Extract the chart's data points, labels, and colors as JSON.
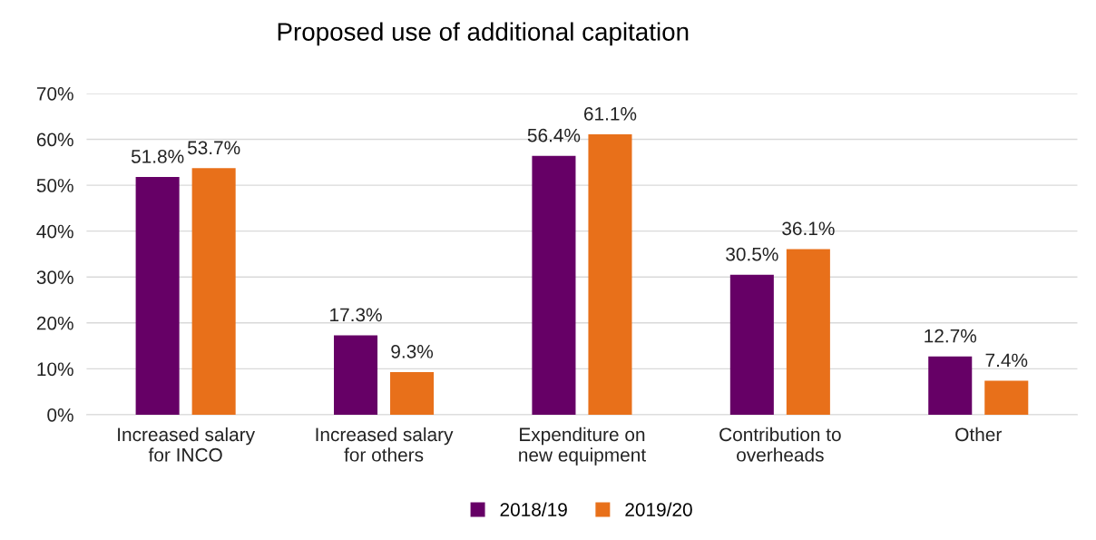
{
  "chart_data": {
    "type": "bar",
    "title": "Proposed use of additional capitation",
    "categories": [
      "Increased salary\nfor INCO",
      "Increased salary\nfor others",
      "Expenditure on\nnew equipment",
      "Contribution to\noverheads",
      "Other"
    ],
    "series": [
      {
        "name": "2018/19",
        "color": "#660066",
        "values": [
          51.8,
          17.3,
          56.4,
          30.5,
          12.7
        ],
        "value_labels": [
          "51.8%",
          "17.3%",
          "56.4%",
          "30.5%",
          "12.7%"
        ]
      },
      {
        "name": "2019/20",
        "color": "#e8701a",
        "values": [
          53.7,
          9.3,
          61.1,
          36.1,
          7.4
        ],
        "value_labels": [
          "53.7%",
          "9.3%",
          "61.1%",
          "36.1%",
          "7.4%"
        ]
      }
    ],
    "ylim": [
      0,
      70
    ],
    "yticks": [
      {
        "value": 0,
        "label": "0%"
      },
      {
        "value": 10,
        "label": "10%"
      },
      {
        "value": 20,
        "label": "20%"
      },
      {
        "value": 30,
        "label": "30%"
      },
      {
        "value": 40,
        "label": "40%"
      },
      {
        "value": 50,
        "label": "50%"
      },
      {
        "value": 60,
        "label": "60%"
      },
      {
        "value": 70,
        "label": "70%"
      }
    ],
    "grid": "y",
    "legend": "bottom"
  }
}
